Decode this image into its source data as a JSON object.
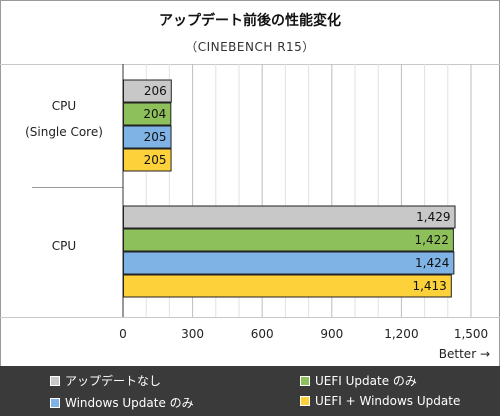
{
  "chart_data": {
    "type": "bar",
    "orientation": "horizontal",
    "title": "アップデート前後の性能変化",
    "subtitle": "（CINEBENCH R15）",
    "categories": [
      "CPU\n(Single Core)",
      "CPU"
    ],
    "series": [
      {
        "name": "アップデートなし",
        "color": "#c8c8c8",
        "values": [
          206,
          1429
        ],
        "labels": [
          "206",
          "1,429"
        ]
      },
      {
        "name": "UEFI Update のみ",
        "color": "#8dbf5a",
        "values": [
          204,
          1422
        ],
        "labels": [
          "204",
          "1,422"
        ]
      },
      {
        "name": "Windows Update のみ",
        "color": "#7fb2e5",
        "values": [
          205,
          1424
        ],
        "labels": [
          "205",
          "1,424"
        ]
      },
      {
        "name": "UEFI + Windows Update",
        "color": "#fcd13a",
        "values": [
          205,
          1413
        ],
        "labels": [
          "205",
          "1,413"
        ]
      }
    ],
    "xlim": [
      0,
      1500
    ],
    "xticks": [
      0,
      300,
      600,
      900,
      1200,
      1500
    ],
    "xtick_labels": [
      "0",
      "300",
      "600",
      "900",
      "1,200",
      "1,500"
    ],
    "xlabel": "Better →",
    "grid": true,
    "legend_position": "bottom"
  }
}
